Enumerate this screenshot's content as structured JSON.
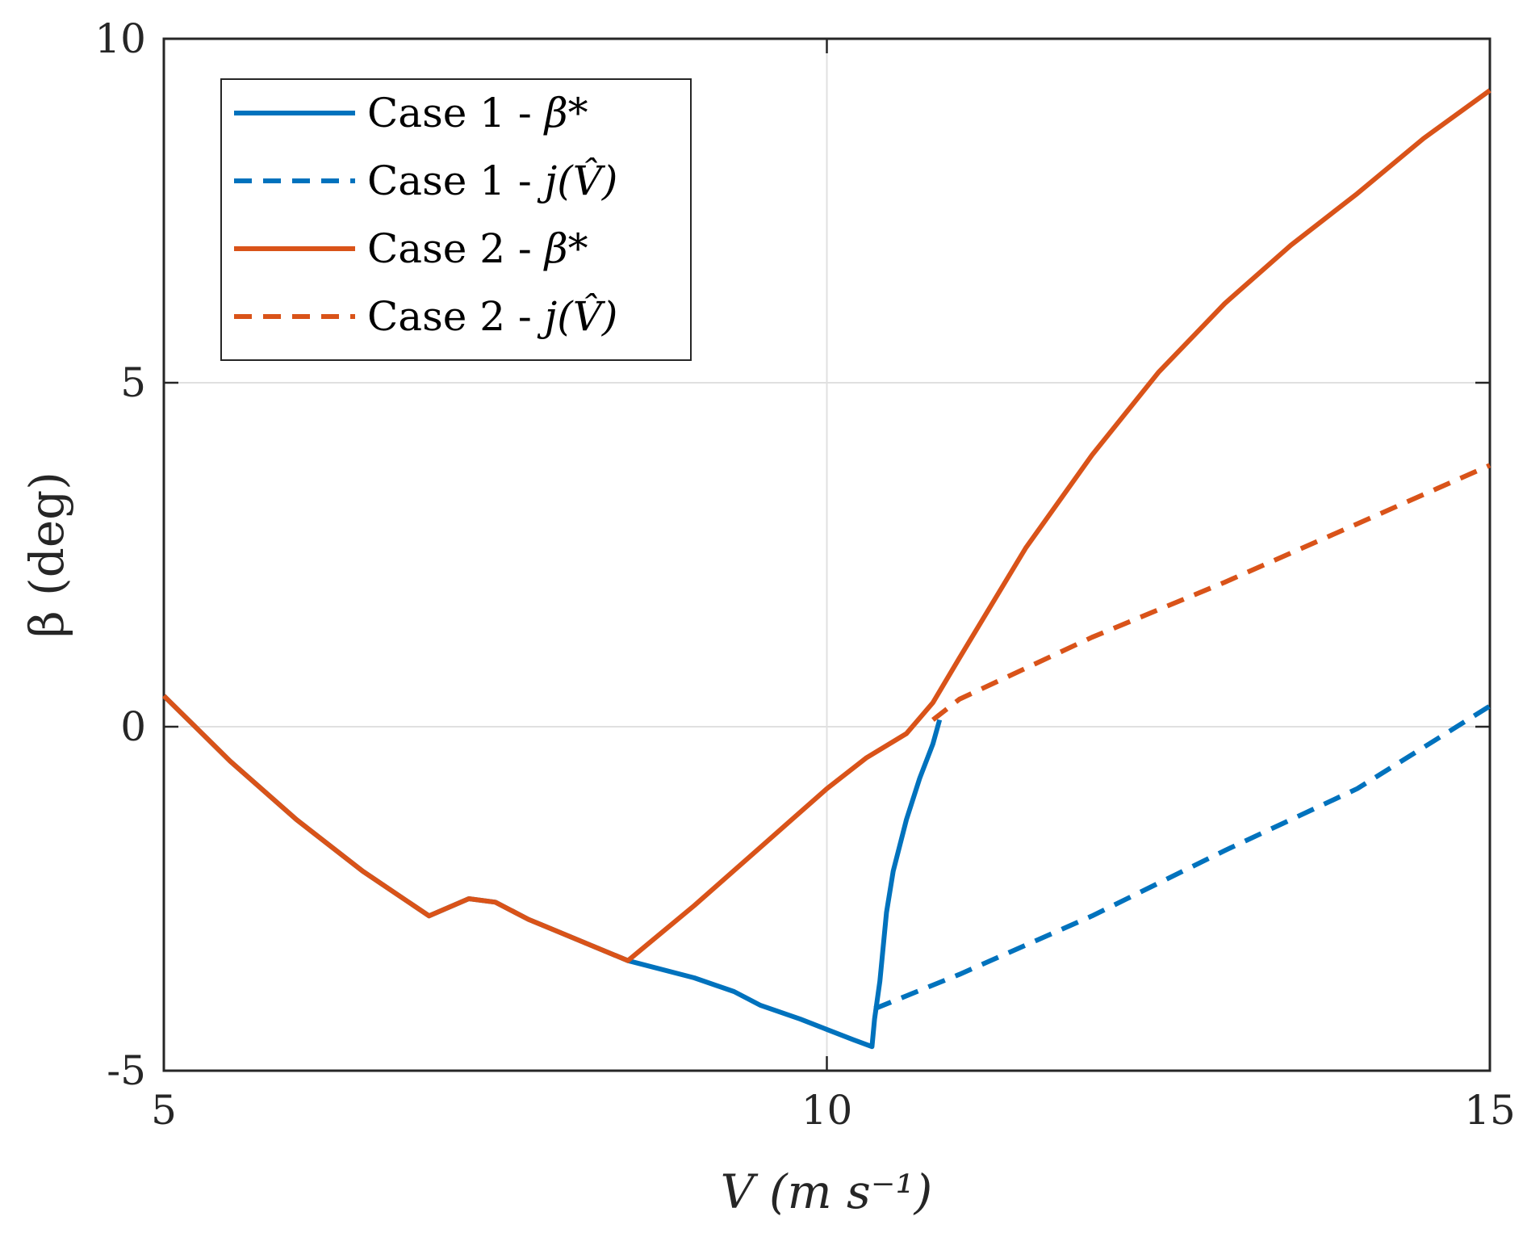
{
  "chart_data": {
    "type": "line",
    "xlabel": "V (m s⁻¹)",
    "ylabel": "β (deg)",
    "xlim": [
      5,
      15
    ],
    "ylim": [
      -5,
      10
    ],
    "xticks": [
      5,
      10,
      15
    ],
    "yticks": [
      -5,
      0,
      5,
      10
    ],
    "xtick_labels": [
      "5",
      "10",
      "15"
    ],
    "ytick_labels": [
      "-5",
      "0",
      "5",
      "10"
    ],
    "grid": true,
    "legend_position": "top-left",
    "series": [
      {
        "name": "Case 1 - β*",
        "color": "#0072BD",
        "style": "solid",
        "x": [
          5.0,
          5.5,
          6.0,
          6.5,
          7.0,
          7.3,
          7.5,
          7.75,
          8.0,
          8.5,
          9.0,
          9.3,
          9.5,
          9.8,
          10.0,
          10.2,
          10.34,
          10.36,
          10.4,
          10.45,
          10.5,
          10.6,
          10.7,
          10.8,
          10.85
        ],
        "y": [
          0.45,
          -0.5,
          -1.35,
          -2.1,
          -2.75,
          -2.5,
          -2.55,
          -2.8,
          -3.0,
          -3.4,
          -3.65,
          -3.85,
          -4.05,
          -4.25,
          -4.4,
          -4.55,
          -4.65,
          -4.25,
          -3.7,
          -2.7,
          -2.1,
          -1.35,
          -0.75,
          -0.25,
          0.1
        ]
      },
      {
        "name": "Case 1 - j(V̂)",
        "color": "#0072BD",
        "style": "dashed",
        "x": [
          10.36,
          11.0,
          12.0,
          13.0,
          14.0,
          15.0
        ],
        "y": [
          -4.1,
          -3.6,
          -2.75,
          -1.8,
          -0.9,
          0.3
        ]
      },
      {
        "name": "Case 2 - β*",
        "color": "#D95319",
        "style": "solid",
        "x": [
          5.0,
          5.5,
          6.0,
          6.5,
          7.0,
          7.3,
          7.5,
          7.75,
          8.0,
          8.5,
          9.0,
          9.5,
          10.0,
          10.3,
          10.6,
          10.8,
          11.0,
          11.5,
          12.0,
          12.5,
          13.0,
          13.5,
          14.0,
          14.5,
          15.0
        ],
        "y": [
          0.45,
          -0.5,
          -1.35,
          -2.1,
          -2.75,
          -2.5,
          -2.55,
          -2.8,
          -3.0,
          -3.4,
          -2.6,
          -1.75,
          -0.9,
          -0.45,
          -0.1,
          0.35,
          1.0,
          2.6,
          3.95,
          5.15,
          6.15,
          7.0,
          7.75,
          8.55,
          9.25
        ]
      },
      {
        "name": "Case 2 - j(V̂)",
        "color": "#D95319",
        "style": "dashed",
        "x": [
          10.8,
          11.0,
          12.0,
          13.0,
          14.0,
          15.0
        ],
        "y": [
          0.1,
          0.4,
          1.3,
          2.1,
          2.95,
          3.8
        ]
      }
    ]
  },
  "legend": {
    "items": [
      {
        "label_main": "Case 1 - ",
        "label_math": "β*"
      },
      {
        "label_main": "Case 1 - ",
        "label_math": "j(V̂)"
      },
      {
        "label_main": "Case 2 - ",
        "label_math": "β*"
      },
      {
        "label_main": "Case 2 - ",
        "label_math": "j(V̂)"
      }
    ]
  }
}
